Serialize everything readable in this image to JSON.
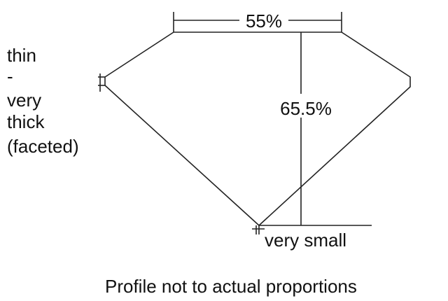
{
  "diagram": {
    "table_label": "55%",
    "depth_label": "65.5%",
    "culet_label": "very small",
    "girdle_label_lines": [
      "thin",
      "-",
      "very",
      "thick",
      "(faceted)"
    ],
    "caption": "Profile not to actual proportions",
    "line_color": "#222222"
  }
}
